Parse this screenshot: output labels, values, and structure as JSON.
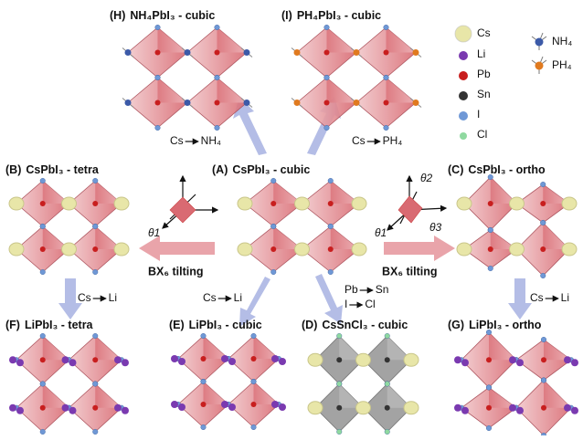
{
  "panels": [
    {
      "letter": "(H)",
      "title": "NH₄PbI₃ - cubic"
    },
    {
      "letter": "(I)",
      "title": "PH₄PbI₃ - cubic"
    },
    {
      "letter": "(B)",
      "title": "CsPbI₃ - tetra"
    },
    {
      "letter": "(A)",
      "title": "CsPbI₃ - cubic"
    },
    {
      "letter": "(C)",
      "title": "CsPbI₃ - ortho"
    },
    {
      "letter": "(F)",
      "title": "LiPbI₃ - tetra"
    },
    {
      "letter": "(E)",
      "title": "LiPbI₃ - cubic"
    },
    {
      "letter": "(D)",
      "title": "CsSnCl₃ - cubic"
    },
    {
      "letter": "(G)",
      "title": "LiPbI₃ - ortho"
    }
  ],
  "substitutions": [
    {
      "from": "Cs",
      "to": "NH₄"
    },
    {
      "from": "Cs",
      "to": "PH₄"
    },
    {
      "from": "Cs",
      "to": "Li"
    },
    {
      "from": "Cs",
      "to": "Li"
    },
    {
      "from": "Pb",
      "to": "Sn",
      "from2": "I",
      "to2": "Cl"
    },
    {
      "from": "Cs",
      "to": "Li"
    }
  ],
  "tilting": [
    "BX₆ tilting",
    "BX₆ tilting"
  ],
  "angles": [
    "θ1",
    "θ2",
    "θ1",
    "θ3"
  ],
  "legend": {
    "atoms": [
      "Cs",
      "Li",
      "Pb",
      "Sn",
      "I",
      "Cl"
    ],
    "molecules": [
      "NH₄",
      "PH₄"
    ]
  }
}
